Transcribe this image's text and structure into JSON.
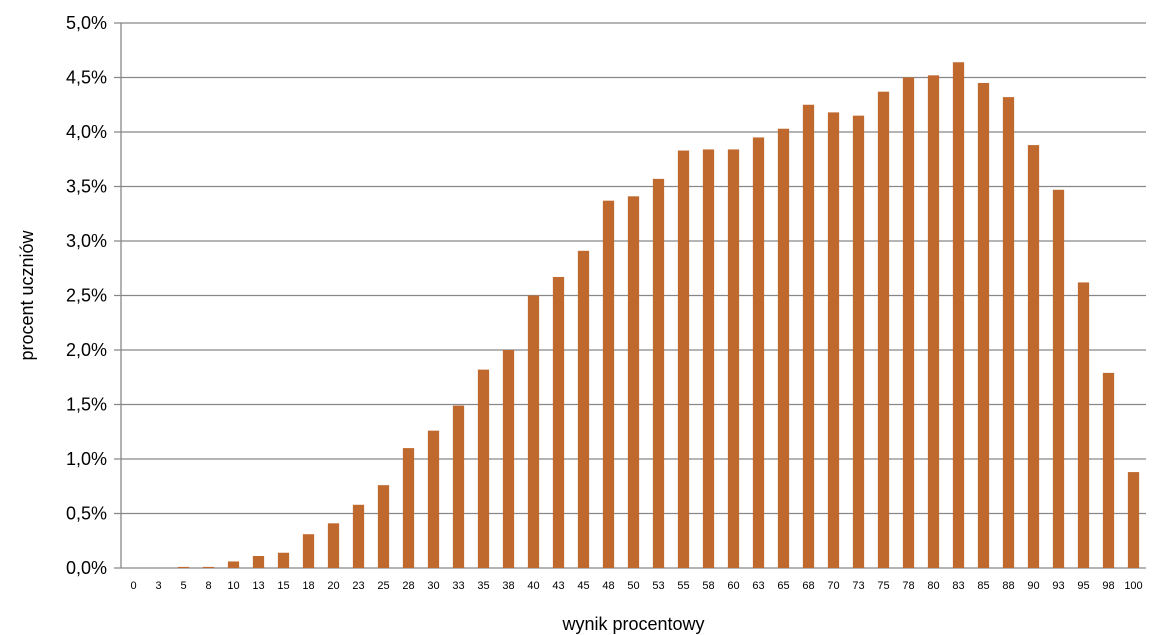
{
  "chart_data": {
    "type": "bar",
    "title": "",
    "xlabel": "wynik procentowy",
    "ylabel": "procent uczniów",
    "ylim": [
      0,
      5.0
    ],
    "yticks": [
      "0,0%",
      "0,5%",
      "1,0%",
      "1,5%",
      "2,0%",
      "2,5%",
      "3,0%",
      "3,5%",
      "4,0%",
      "4,5%",
      "5,0%"
    ],
    "grid": true,
    "bar_color": "#C0692F",
    "categories": [
      "0",
      "3",
      "5",
      "8",
      "10",
      "13",
      "15",
      "18",
      "20",
      "23",
      "25",
      "28",
      "30",
      "33",
      "35",
      "38",
      "40",
      "43",
      "45",
      "48",
      "50",
      "53",
      "55",
      "58",
      "60",
      "63",
      "65",
      "68",
      "70",
      "73",
      "75",
      "78",
      "80",
      "83",
      "85",
      "88",
      "90",
      "93",
      "95",
      "98",
      "100"
    ],
    "values": [
      0.0,
      0.0,
      0.01,
      0.01,
      0.06,
      0.11,
      0.14,
      0.31,
      0.41,
      0.58,
      0.76,
      1.1,
      1.26,
      1.49,
      1.82,
      2.0,
      2.5,
      2.67,
      2.91,
      3.37,
      3.41,
      3.57,
      3.83,
      3.84,
      3.84,
      3.95,
      4.03,
      4.25,
      4.18,
      4.15,
      4.37,
      4.5,
      4.52,
      4.64,
      4.45,
      4.32,
      3.88,
      3.47,
      2.62,
      1.79,
      0.88
    ]
  }
}
